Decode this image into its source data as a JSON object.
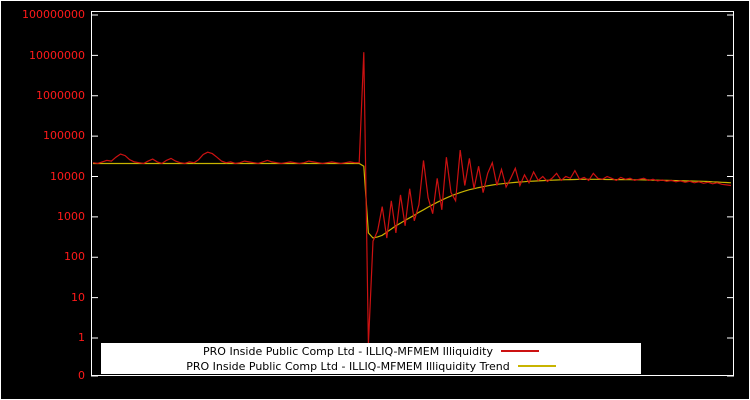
{
  "axis": {
    "tick_labels": [
      "100000000",
      "10000000",
      "1000000",
      "100000",
      "10000",
      "1000",
      "100",
      "10",
      "1",
      "0"
    ],
    "label_color": "#ff1a1a",
    "border_color": "#ffffff"
  },
  "legend": {
    "items": [
      {
        "label": "PRO Inside Public Comp Ltd - ILLIQ-MFMEM Illiquidity",
        "color": "#cc1111"
      },
      {
        "label": "PRO Inside Public Comp Ltd - ILLIQ-MFMEM Illiquidity Trend",
        "color": "#c8b400"
      }
    ]
  },
  "chart_data": {
    "type": "line",
    "title": "",
    "xlabel": "",
    "ylabel": "",
    "y_scale": "log",
    "y_tick_labels": [
      "100000000",
      "10000000",
      "1000000",
      "100000",
      "10000",
      "1000",
      "100",
      "10",
      "1",
      "0"
    ],
    "ylim": [
      0.5,
      100000000
    ],
    "grid": false,
    "legend_position": "bottom-center",
    "background": "#000000",
    "series": [
      {
        "name": "PRO Inside Public Comp Ltd - ILLIQ-MFMEM Illiquidity",
        "color": "#cc1111",
        "values": [
          22000,
          21000,
          23000,
          25000,
          24000,
          30000,
          36000,
          33000,
          26000,
          23000,
          22000,
          21000,
          24000,
          27000,
          23000,
          21000,
          25000,
          28000,
          24000,
          22000,
          21000,
          23000,
          22000,
          26000,
          35000,
          40000,
          37000,
          30000,
          24000,
          22000,
          23000,
          21000,
          22000,
          24000,
          23000,
          22000,
          21000,
          23000,
          25000,
          23000,
          22000,
          21000,
          22000,
          23000,
          22000,
          21000,
          22000,
          24000,
          23000,
          22000,
          21000,
          22000,
          23000,
          22000,
          21000,
          22000,
          23000,
          22000,
          22000,
          12000000,
          0.7,
          250,
          450,
          1800,
          300,
          2500,
          400,
          3500,
          600,
          5000,
          800,
          2000,
          25000,
          3000,
          1200,
          9000,
          1500,
          30000,
          4000,
          2500,
          45000,
          6000,
          28000,
          5000,
          18000,
          4000,
          12000,
          22000,
          6000,
          15000,
          5500,
          9000,
          16000,
          6000,
          11000,
          7000,
          13000,
          8000,
          10000,
          7500,
          9000,
          12000,
          8000,
          10000,
          9000,
          14000,
          8500,
          9500,
          8000,
          12000,
          9000,
          8500,
          10000,
          9000,
          8000,
          9500,
          8500,
          9000,
          8000,
          8500,
          9000,
          8000,
          8500,
          7800,
          8200,
          7600,
          8000,
          7400,
          7800,
          7200,
          7600,
          7000,
          7400,
          6800,
          7200,
          6600,
          7000,
          6400,
          6200,
          6000
        ]
      },
      {
        "name": "PRO Inside Public Comp Ltd - ILLIQ-MFMEM Illiquidity Trend",
        "color": "#c8b400",
        "values": [
          21000,
          21000,
          21000,
          21000,
          21000,
          21000,
          21000,
          21000,
          21000,
          21000,
          21000,
          21000,
          21000,
          21000,
          21000,
          21000,
          21000,
          21000,
          21000,
          21000,
          21000,
          21000,
          21000,
          21000,
          21000,
          21000,
          21000,
          21000,
          21000,
          21000,
          21000,
          21000,
          21000,
          21000,
          21000,
          21000,
          21000,
          21000,
          21000,
          21000,
          21000,
          21000,
          21000,
          21000,
          21000,
          21000,
          21000,
          21000,
          21000,
          21000,
          21000,
          21000,
          21000,
          21000,
          21000,
          21000,
          21000,
          21000,
          21000,
          18000,
          400,
          300,
          320,
          350,
          420,
          500,
          600,
          700,
          820,
          950,
          1100,
          1300,
          1500,
          1750,
          2000,
          2300,
          2600,
          2950,
          3300,
          3650,
          4000,
          4350,
          4700,
          5000,
          5300,
          5600,
          5900,
          6150,
          6400,
          6600,
          6800,
          7000,
          7150,
          7300,
          7450,
          7600,
          7700,
          7800,
          7900,
          8000,
          8100,
          8200,
          8300,
          8350,
          8400,
          8450,
          8500,
          8500,
          8500,
          8500,
          8500,
          8480,
          8450,
          8420,
          8400,
          8380,
          8350,
          8320,
          8300,
          8270,
          8250,
          8200,
          8150,
          8100,
          8050,
          8000,
          7950,
          7900,
          7850,
          7800,
          7750,
          7700,
          7650,
          7600,
          7500,
          7400,
          7300,
          7200,
          7100,
          7000
        ]
      }
    ]
  }
}
